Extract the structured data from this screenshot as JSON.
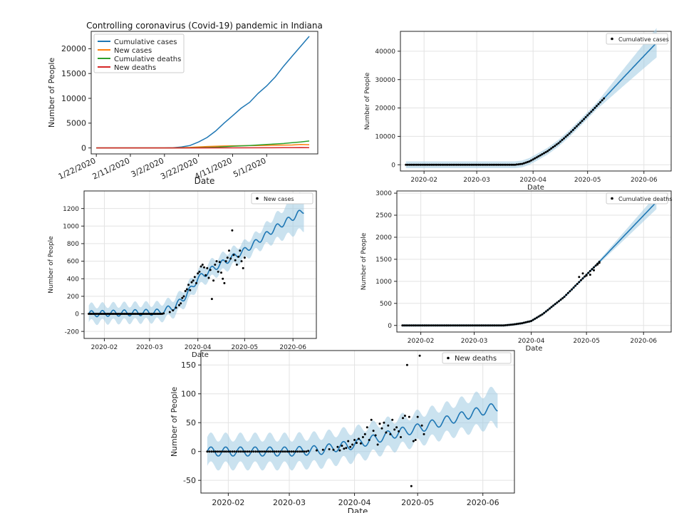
{
  "chart_data": [
    {
      "id": "main",
      "type": "line",
      "title": "Controlling coronavirus (Covid-19) pandemic in Indiana",
      "xlabel": "Date",
      "ylabel": "Number of People",
      "x_ticks": [
        "1/22/2020",
        "2/11/2020",
        "3/2/2020",
        "3/22/2020",
        "4/11/2020",
        "5/1/2020"
      ],
      "y_ticks": [
        0,
        5000,
        10000,
        15000,
        20000
      ],
      "ylim": [
        -1200,
        23500
      ],
      "grid": false,
      "legend_position": "top-left",
      "legend": [
        "Cumulative cases",
        "New cases",
        "Cumulative deaths",
        "New deaths"
      ],
      "colors": [
        "#1f77b4",
        "#ff7f0e",
        "#2ca02c",
        "#d62728"
      ],
      "series": [
        {
          "name": "Cumulative cases",
          "points": [
            [
              0,
              0
            ],
            [
              40,
              0
            ],
            [
              45,
              30
            ],
            [
              50,
              200
            ],
            [
              55,
              500
            ],
            [
              60,
              1200
            ],
            [
              65,
              2100
            ],
            [
              70,
              3400
            ],
            [
              75,
              5000
            ],
            [
              80,
              6500
            ],
            [
              85,
              8000
            ],
            [
              90,
              9200
            ],
            [
              95,
              11000
            ],
            [
              100,
              12500
            ],
            [
              105,
              14300
            ],
            [
              110,
              16500
            ],
            [
              115,
              18500
            ],
            [
              120,
              20500
            ],
            [
              125,
              22500
            ]
          ]
        },
        {
          "name": "New cases",
          "points": [
            [
              0,
              0
            ],
            [
              45,
              0
            ],
            [
              55,
              100
            ],
            [
              65,
              300
            ],
            [
              75,
              400
            ],
            [
              85,
              450
            ],
            [
              95,
              500
            ],
            [
              105,
              550
            ],
            [
              115,
              600
            ],
            [
              120,
              700
            ],
            [
              125,
              650
            ]
          ]
        },
        {
          "name": "Cumulative deaths",
          "points": [
            [
              0,
              0
            ],
            [
              50,
              0
            ],
            [
              60,
              50
            ],
            [
              70,
              150
            ],
            [
              80,
              350
            ],
            [
              90,
              500
            ],
            [
              100,
              700
            ],
            [
              110,
              900
            ],
            [
              115,
              1050
            ],
            [
              120,
              1200
            ],
            [
              125,
              1400
            ]
          ]
        },
        {
          "name": "New deaths",
          "points": [
            [
              0,
              0
            ],
            [
              60,
              0
            ],
            [
              80,
              20
            ],
            [
              100,
              40
            ],
            [
              110,
              50
            ],
            [
              115,
              60
            ],
            [
              120,
              80
            ],
            [
              125,
              50
            ]
          ]
        }
      ]
    },
    {
      "id": "cum-cases",
      "type": "scatter",
      "xlabel": "Date",
      "ylabel": "Number of People",
      "x_ticks": [
        "2020-02",
        "2020-03",
        "2020-04",
        "2020-05",
        "2020-06"
      ],
      "y_ticks": [
        0,
        10000,
        20000,
        30000,
        40000
      ],
      "ylim": [
        -2200,
        47000
      ],
      "legend": [
        "Cumulative cases"
      ],
      "legend_position": "top-right",
      "trend": [
        [
          0,
          0
        ],
        [
          60,
          0
        ],
        [
          64,
          300
        ],
        [
          68,
          1200
        ],
        [
          72,
          2600
        ],
        [
          78,
          4800
        ],
        [
          84,
          7600
        ],
        [
          90,
          11000
        ],
        [
          96,
          14800
        ],
        [
          102,
          18700
        ],
        [
          108,
          22700
        ],
        [
          120,
          30900
        ],
        [
          132,
          39000
        ],
        [
          138,
          43000
        ]
      ],
      "band_width": 1200,
      "band_growth_start": 105,
      "band_growth_rate": 120,
      "observed_start": 0,
      "observed_end": 109
    },
    {
      "id": "new-cases",
      "type": "scatter",
      "xlabel": "Date",
      "ylabel": "Number of People",
      "x_ticks": [
        "2020-02",
        "2020-03",
        "2020-04",
        "2020-05",
        "2020-06"
      ],
      "y_ticks": [
        -200,
        0,
        200,
        400,
        600,
        800,
        1000,
        1200
      ],
      "ylim": [
        -280,
        1400
      ],
      "legend": [
        "New cases"
      ],
      "legend_position": "top-right",
      "trend": [
        [
          0,
          0
        ],
        [
          45,
          20
        ],
        [
          55,
          80
        ],
        [
          62,
          200
        ],
        [
          70,
          400
        ],
        [
          80,
          520
        ],
        [
          90,
          620
        ],
        [
          100,
          720
        ],
        [
          110,
          850
        ],
        [
          120,
          980
        ],
        [
          132,
          1110
        ],
        [
          138,
          1180
        ]
      ],
      "weekly_amplitude": 35,
      "band_width": 95,
      "band_growth_start": 108,
      "band_growth_rate": 4,
      "scatter": [
        [
          48,
          5
        ],
        [
          52,
          20
        ],
        [
          54,
          40
        ],
        [
          56,
          70
        ],
        [
          58,
          100
        ],
        [
          59,
          120
        ],
        [
          60,
          180
        ],
        [
          61,
          200
        ],
        [
          62,
          260
        ],
        [
          63,
          280
        ],
        [
          64,
          330
        ],
        [
          65,
          270
        ],
        [
          66,
          360
        ],
        [
          67,
          380
        ],
        [
          68,
          420
        ],
        [
          69,
          350
        ],
        [
          70,
          460
        ],
        [
          71,
          480
        ],
        [
          72,
          540
        ],
        [
          73,
          560
        ],
        [
          74,
          530
        ],
        [
          75,
          440
        ],
        [
          76,
          520
        ],
        [
          77,
          410
        ],
        [
          78,
          500
        ],
        [
          79,
          170
        ],
        [
          80,
          380
        ],
        [
          81,
          560
        ],
        [
          82,
          600
        ],
        [
          83,
          480
        ],
        [
          84,
          590
        ],
        [
          85,
          470
        ],
        [
          86,
          400
        ],
        [
          87,
          350
        ],
        [
          88,
          600
        ],
        [
          89,
          640
        ],
        [
          90,
          720
        ],
        [
          91,
          630
        ],
        [
          92,
          950
        ],
        [
          93,
          670
        ],
        [
          94,
          610
        ],
        [
          95,
          560
        ],
        [
          96,
          650
        ],
        [
          97,
          720
        ],
        [
          98,
          600
        ],
        [
          99,
          520
        ],
        [
          100,
          640
        ]
      ],
      "observed_end": 100
    },
    {
      "id": "cum-deaths",
      "type": "scatter",
      "xlabel": "Date",
      "ylabel": "Number of People",
      "x_ticks": [
        "2020-02",
        "2020-03",
        "2020-04",
        "2020-05",
        "2020-06"
      ],
      "y_ticks": [
        0,
        500,
        1000,
        1500,
        2000,
        2500,
        3000
      ],
      "ylim": [
        -150,
        3050
      ],
      "legend": [
        "Cumulative deaths"
      ],
      "legend_position": "top-right",
      "trend": [
        [
          0,
          0
        ],
        [
          55,
          0
        ],
        [
          60,
          20
        ],
        [
          65,
          50
        ],
        [
          70,
          100
        ],
        [
          76,
          250
        ],
        [
          82,
          450
        ],
        [
          88,
          650
        ],
        [
          94,
          900
        ],
        [
          100,
          1150
        ],
        [
          106,
          1400
        ],
        [
          114,
          1750
        ],
        [
          122,
          2100
        ],
        [
          130,
          2450
        ],
        [
          138,
          2800
        ]
      ],
      "band_width": 30,
      "band_growth_start": 105,
      "band_growth_rate": 4,
      "extra_points": [
        [
          96,
          1100
        ],
        [
          98,
          1180
        ],
        [
          100,
          1130
        ],
        [
          102,
          1150
        ],
        [
          104,
          1250
        ],
        [
          106,
          1380
        ],
        [
          107,
          1420
        ]
      ],
      "observed_end": 107
    },
    {
      "id": "new-deaths",
      "type": "scatter",
      "xlabel": "Date",
      "ylabel": "Number of People",
      "x_ticks": [
        "2020-02",
        "2020-03",
        "2020-04",
        "2020-05",
        "2020-06"
      ],
      "y_ticks": [
        -50,
        0,
        50,
        100,
        150
      ],
      "ylim": [
        -72,
        175
      ],
      "legend": [
        "New deaths"
      ],
      "legend_position": "top-right",
      "trend": [
        [
          0,
          0
        ],
        [
          40,
          0
        ],
        [
          55,
          3
        ],
        [
          60,
          7
        ],
        [
          70,
          12
        ],
        [
          80,
          22
        ],
        [
          90,
          32
        ],
        [
          100,
          40
        ],
        [
          110,
          50
        ],
        [
          120,
          60
        ],
        [
          130,
          70
        ],
        [
          138,
          78
        ]
      ],
      "weekly_amplitude": 8,
      "band_width": 25,
      "band_growth_start": 112,
      "band_growth_rate": 0.2,
      "scatter": [
        [
          48,
          1
        ],
        [
          52,
          2
        ],
        [
          55,
          3
        ],
        [
          58,
          4
        ],
        [
          60,
          3
        ],
        [
          62,
          8
        ],
        [
          63,
          2
        ],
        [
          64,
          10
        ],
        [
          65,
          5
        ],
        [
          66,
          6
        ],
        [
          67,
          18
        ],
        [
          68,
          8
        ],
        [
          69,
          12
        ],
        [
          70,
          20
        ],
        [
          71,
          15
        ],
        [
          72,
          22
        ],
        [
          73,
          14
        ],
        [
          74,
          25
        ],
        [
          75,
          30
        ],
        [
          76,
          42
        ],
        [
          77,
          20
        ],
        [
          78,
          55
        ],
        [
          79,
          36
        ],
        [
          80,
          28
        ],
        [
          81,
          12
        ],
        [
          82,
          48
        ],
        [
          83,
          40
        ],
        [
          84,
          50
        ],
        [
          85,
          33
        ],
        [
          86,
          45
        ],
        [
          87,
          30
        ],
        [
          88,
          55
        ],
        [
          89,
          38
        ],
        [
          90,
          42
        ],
        [
          91,
          35
        ],
        [
          92,
          25
        ],
        [
          93,
          58
        ],
        [
          94,
          62
        ],
        [
          95,
          150
        ],
        [
          96,
          60
        ],
        [
          97,
          -60
        ],
        [
          98,
          18
        ],
        [
          99,
          20
        ],
        [
          100,
          60
        ],
        [
          101,
          166
        ],
        [
          102,
          45
        ],
        [
          103,
          30
        ]
      ],
      "observed_end": 103
    }
  ]
}
